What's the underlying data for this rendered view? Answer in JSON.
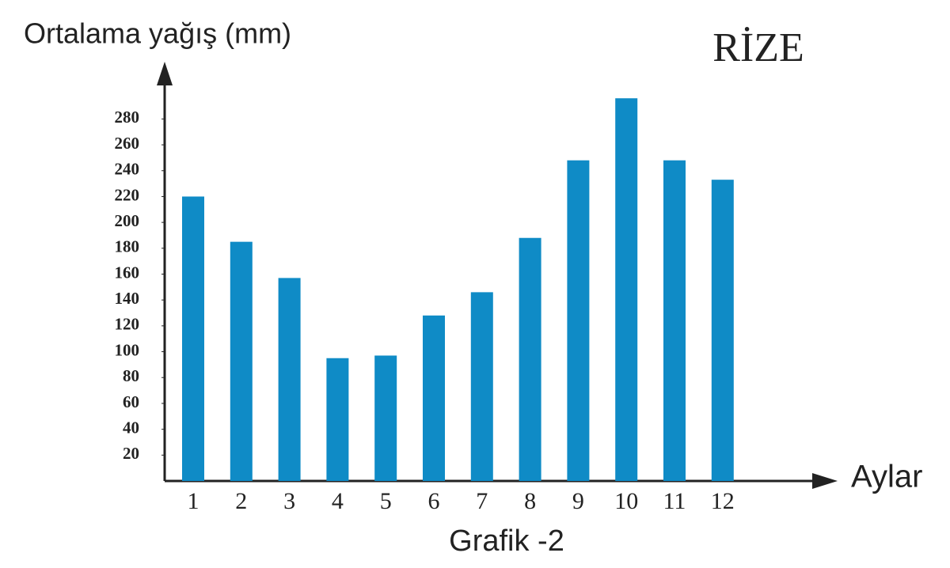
{
  "chart_data": {
    "type": "bar",
    "title": "RİZE",
    "caption": "Grafik -2",
    "ylabel": "Ortalama yağış (mm)",
    "xlabel": "Aylar",
    "categories": [
      "1",
      "2",
      "3",
      "4",
      "5",
      "6",
      "7",
      "8",
      "9",
      "10",
      "11",
      "12"
    ],
    "values": [
      220,
      185,
      157,
      95,
      97,
      128,
      146,
      188,
      248,
      296,
      248,
      233
    ],
    "color": "#0f8bc6",
    "ylim": [
      0,
      320
    ],
    "yticks": [
      20,
      40,
      60,
      80,
      100,
      120,
      140,
      160,
      180,
      200,
      220,
      240,
      260,
      280
    ],
    "grid": false
  }
}
